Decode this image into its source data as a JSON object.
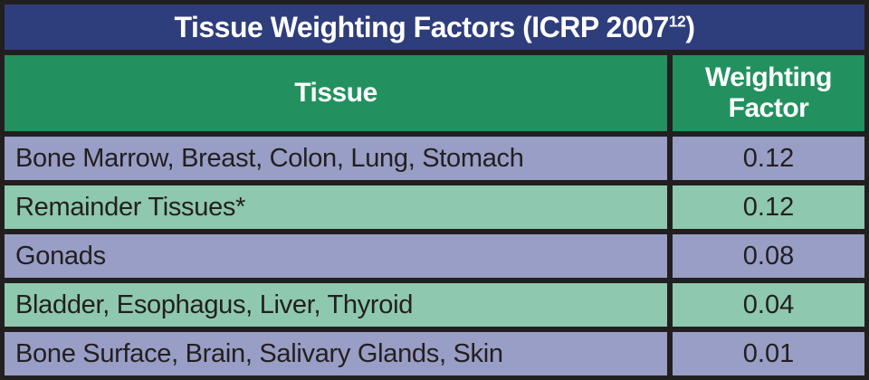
{
  "colors": {
    "border": "#221f20",
    "title_bar": "#2e3d7c",
    "header_green": "#22915f",
    "row_lavender": "#989ec5",
    "row_green": "#8ec8ae",
    "header_text": "#ffffff",
    "body_text": "#231f20"
  },
  "title": {
    "prefix": "Tissue Weighting Factors (ICRP 2007",
    "superscript": "12",
    "suffix": ")"
  },
  "chart_data": {
    "type": "table",
    "title": "Tissue Weighting Factors (ICRP 2007^12)",
    "columns": [
      "Tissue",
      "Weighting Factor"
    ],
    "rows": [
      {
        "tissue": "Bone Marrow, Breast, Colon, Lung, Stomach",
        "weighting_factor": "0.12"
      },
      {
        "tissue": "Remainder Tissues*",
        "weighting_factor": "0.12"
      },
      {
        "tissue": "Gonads",
        "weighting_factor": "0.08"
      },
      {
        "tissue": "Bladder, Esophagus, Liver, Thyroid",
        "weighting_factor": "0.04"
      },
      {
        "tissue": "Bone Surface, Brain, Salivary Glands, Skin",
        "weighting_factor": "0.01"
      }
    ]
  },
  "header": {
    "tissue_label": "Tissue",
    "weighting_factor_label": "Weighting Factor"
  }
}
